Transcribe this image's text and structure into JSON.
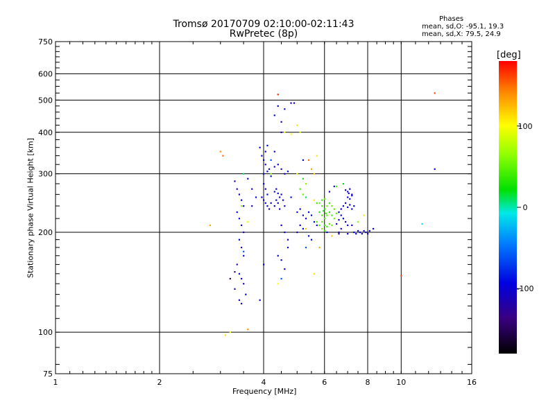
{
  "header": {
    "title": "Tromsø 20170709 02:10:00-02:11:43",
    "subtitle": "RwPretec (8p)"
  },
  "stats": {
    "heading": "Phases",
    "o_mode": "mean, sd,O: -95.1, 19.3",
    "x_mode": "mean, sd,X:  79.5, 24.9"
  },
  "colorbar": {
    "unit_label": "[deg]",
    "range": [
      -180,
      180
    ],
    "tick_values": [
      100,
      0,
      -100
    ],
    "tick_labels": [
      "100",
      "0",
      "-100"
    ]
  },
  "chart_data": {
    "type": "scatter",
    "title": "Tromsø 20170709 02:10:00-02:11:43",
    "subtitle": "RwPretec (8p)",
    "xlabel": "Frequency [MHz]",
    "ylabel": "Stationary phase Virtual Height [km]",
    "x_scale": "log",
    "y_scale": "log",
    "xlim": [
      1,
      16
    ],
    "ylim": [
      75,
      750
    ],
    "x_ticks": [
      1,
      2,
      4,
      6,
      8,
      10,
      16
    ],
    "x_tick_labels": [
      "1",
      "2",
      "4",
      "6",
      "8",
      "10",
      "16"
    ],
    "y_ticks": [
      75,
      100,
      200,
      300,
      400,
      500,
      600,
      750
    ],
    "y_tick_labels": [
      "75",
      "100",
      "200",
      "300",
      "400",
      "500",
      "600",
      "750"
    ],
    "grid": true,
    "color_scale": "phase (deg), rainbow: black (-180) to red (180)",
    "points": [
      [
        3.3,
        285,
        -110
      ],
      [
        3.35,
        270,
        -105
      ],
      [
        3.4,
        260,
        -100
      ],
      [
        3.45,
        250,
        -95
      ],
      [
        3.5,
        240,
        -100
      ],
      [
        3.35,
        230,
        -90
      ],
      [
        3.4,
        220,
        -85
      ],
      [
        3.45,
        210,
        -100
      ],
      [
        3.5,
        200,
        -110
      ],
      [
        3.4,
        190,
        -95
      ],
      [
        3.45,
        180,
        -105
      ],
      [
        3.5,
        170,
        -100
      ],
      [
        3.35,
        160,
        -120
      ],
      [
        3.4,
        150,
        -95
      ],
      [
        3.45,
        145,
        -100
      ],
      [
        3.5,
        140,
        -110
      ],
      [
        3.3,
        135,
        -125
      ],
      [
        3.55,
        130,
        -95
      ],
      [
        3.4,
        125,
        -105
      ],
      [
        3.45,
        122,
        -100
      ],
      [
        3.3,
        152,
        -140
      ],
      [
        3.2,
        145,
        -150
      ],
      [
        3.5,
        175,
        -60
      ],
      [
        3.45,
        240,
        60
      ],
      [
        3.5,
        300,
        10
      ],
      [
        3.9,
        360,
        -90
      ],
      [
        3.95,
        340,
        -100
      ],
      [
        4.0,
        330,
        -95
      ],
      [
        4.05,
        320,
        -110
      ],
      [
        4.1,
        305,
        -95
      ],
      [
        4.15,
        310,
        -100
      ],
      [
        4.2,
        295,
        -105
      ],
      [
        4.0,
        300,
        -90
      ],
      [
        4.05,
        350,
        -100
      ],
      [
        4.1,
        365,
        -95
      ],
      [
        4.0,
        280,
        -100
      ],
      [
        4.05,
        270,
        -110
      ],
      [
        4.1,
        260,
        -95
      ],
      [
        3.95,
        255,
        -100
      ],
      [
        4.0,
        250,
        -95
      ],
      [
        4.05,
        245,
        -90
      ],
      [
        4.1,
        240,
        -100
      ],
      [
        4.15,
        235,
        -110
      ],
      [
        4.2,
        245,
        -95
      ],
      [
        4.3,
        240,
        -100
      ],
      [
        4.35,
        250,
        -95
      ],
      [
        4.4,
        245,
        -100
      ],
      [
        4.45,
        255,
        -105
      ],
      [
        4.5,
        260,
        -95
      ],
      [
        4.55,
        250,
        -100
      ],
      [
        4.6,
        240,
        -110
      ],
      [
        4.3,
        265,
        -90
      ],
      [
        4.35,
        270,
        -95
      ],
      [
        4.4,
        262,
        -100
      ],
      [
        4.45,
        235,
        -105
      ],
      [
        4.3,
        315,
        -100
      ],
      [
        4.4,
        320,
        -95
      ],
      [
        4.5,
        310,
        -105
      ],
      [
        4.6,
        300,
        -100
      ],
      [
        4.7,
        305,
        -95
      ],
      [
        4.3,
        450,
        -100
      ],
      [
        4.4,
        480,
        -95
      ],
      [
        4.6,
        470,
        -100
      ],
      [
        4.8,
        490,
        -105
      ],
      [
        4.4,
        520,
        170
      ],
      [
        4.5,
        430,
        -110
      ],
      [
        4.6,
        400,
        100
      ],
      [
        4.8,
        395,
        100
      ],
      [
        5.0,
        420,
        110
      ],
      [
        5.1,
        400,
        90
      ],
      [
        4.2,
        330,
        -60
      ],
      [
        4.3,
        350,
        -100
      ],
      [
        4.5,
        210,
        -100
      ],
      [
        4.6,
        200,
        -95
      ],
      [
        4.7,
        190,
        -110
      ],
      [
        4.4,
        170,
        -100
      ],
      [
        4.5,
        165,
        -95
      ],
      [
        4.6,
        155,
        -100
      ],
      [
        4.5,
        145,
        -60
      ],
      [
        4.4,
        140,
        100
      ],
      [
        3.9,
        125,
        -100
      ],
      [
        4.0,
        160,
        -95
      ],
      [
        4.7,
        180,
        -100
      ],
      [
        3.2,
        100,
        100
      ],
      [
        3.1,
        98,
        110
      ],
      [
        5.0,
        300,
        100
      ],
      [
        5.2,
        290,
        30
      ],
      [
        5.3,
        280,
        60
      ],
      [
        5.4,
        330,
        150
      ],
      [
        5.5,
        310,
        130
      ],
      [
        5.6,
        300,
        120
      ],
      [
        5.7,
        340,
        110
      ],
      [
        5.2,
        260,
        50
      ],
      [
        5.3,
        255,
        10
      ],
      [
        5.1,
        270,
        40
      ],
      [
        5.0,
        230,
        -100
      ],
      [
        5.1,
        235,
        -95
      ],
      [
        5.2,
        225,
        -110
      ],
      [
        5.3,
        220,
        -100
      ],
      [
        5.4,
        230,
        -95
      ],
      [
        5.5,
        225,
        -100
      ],
      [
        5.6,
        215,
        -105
      ],
      [
        5.7,
        210,
        -95
      ],
      [
        5.1,
        210,
        -100
      ],
      [
        5.2,
        205,
        -95
      ],
      [
        5.0,
        200,
        -110
      ],
      [
        5.4,
        195,
        -100
      ],
      [
        5.5,
        190,
        -95
      ],
      [
        5.3,
        180,
        -60
      ],
      [
        5.6,
        150,
        110
      ],
      [
        5.7,
        245,
        40
      ],
      [
        5.8,
        245,
        50
      ],
      [
        5.9,
        240,
        45
      ],
      [
        6.0,
        235,
        35
      ],
      [
        6.1,
        240,
        55
      ],
      [
        6.2,
        245,
        40
      ],
      [
        6.3,
        240,
        50
      ],
      [
        6.4,
        235,
        45
      ],
      [
        5.8,
        230,
        30
      ],
      [
        5.9,
        225,
        40
      ],
      [
        6.0,
        220,
        50
      ],
      [
        6.1,
        225,
        45
      ],
      [
        6.2,
        230,
        35
      ],
      [
        6.3,
        225,
        40
      ],
      [
        6.4,
        220,
        55
      ],
      [
        5.7,
        215,
        40
      ],
      [
        5.8,
        210,
        45
      ],
      [
        5.9,
        215,
        50
      ],
      [
        6.0,
        210,
        35
      ],
      [
        6.1,
        208,
        40
      ],
      [
        6.2,
        212,
        45
      ],
      [
        6.3,
        210,
        50
      ],
      [
        5.9,
        205,
        55
      ],
      [
        6.0,
        202,
        40
      ],
      [
        6.1,
        200,
        -100
      ],
      [
        5.9,
        250,
        40
      ],
      [
        6.0,
        252,
        50
      ],
      [
        6.5,
        228,
        45
      ],
      [
        5.95,
        232,
        35
      ],
      [
        6.05,
        228,
        40
      ],
      [
        6.6,
        230,
        -100
      ],
      [
        6.7,
        235,
        -95
      ],
      [
        6.8,
        240,
        -110
      ],
      [
        6.9,
        245,
        -100
      ],
      [
        7.0,
        238,
        -95
      ],
      [
        7.1,
        242,
        -100
      ],
      [
        7.2,
        235,
        -105
      ],
      [
        7.3,
        240,
        -95
      ],
      [
        6.7,
        225,
        -100
      ],
      [
        6.8,
        220,
        -95
      ],
      [
        6.9,
        215,
        -110
      ],
      [
        7.0,
        210,
        -100
      ],
      [
        6.6,
        218,
        -95
      ],
      [
        6.5,
        212,
        -100
      ],
      [
        6.7,
        205,
        -105
      ],
      [
        7.0,
        265,
        -100
      ],
      [
        7.1,
        270,
        -95
      ],
      [
        7.2,
        260,
        -110
      ],
      [
        7.0,
        255,
        -100
      ],
      [
        7.2,
        258,
        -95
      ],
      [
        6.8,
        280,
        20
      ],
      [
        6.5,
        275,
        40
      ],
      [
        7.1,
        252,
        -90
      ],
      [
        6.9,
        268,
        -100
      ],
      [
        7.05,
        262,
        -95
      ],
      [
        7.3,
        200,
        -100
      ],
      [
        7.5,
        202,
        -95
      ],
      [
        7.7,
        198,
        -110
      ],
      [
        7.9,
        200,
        -100
      ],
      [
        8.1,
        202,
        -95
      ],
      [
        8.3,
        205,
        -100
      ],
      [
        7.4,
        198,
        -105
      ],
      [
        7.6,
        200,
        -95
      ],
      [
        7.8,
        202,
        -100
      ],
      [
        8.0,
        198,
        -110
      ],
      [
        7.2,
        210,
        -100
      ],
      [
        7.0,
        198,
        -95
      ],
      [
        6.6,
        200,
        -110
      ],
      [
        7.5,
        215,
        60
      ],
      [
        7.8,
        225,
        110
      ],
      [
        2.8,
        210,
        130
      ],
      [
        3.0,
        350,
        140
      ],
      [
        3.05,
        340,
        150
      ],
      [
        3.6,
        102,
        140
      ],
      [
        10.0,
        148,
        160
      ],
      [
        12.5,
        525,
        160
      ],
      [
        12.5,
        310,
        -100
      ],
      [
        11.5,
        212,
        -10
      ],
      [
        6.3,
        195,
        120
      ],
      [
        5.8,
        180,
        130
      ],
      [
        4.9,
        490,
        -110
      ],
      [
        4.5,
        400,
        -120
      ],
      [
        4.2,
        300,
        60
      ],
      [
        5.2,
        330,
        -95
      ],
      [
        4.8,
        255,
        -90
      ],
      [
        3.6,
        290,
        -100
      ],
      [
        3.7,
        270,
        -110
      ],
      [
        3.8,
        255,
        -95
      ],
      [
        3.7,
        240,
        -120
      ],
      [
        3.6,
        215,
        90
      ],
      [
        5.3,
        205,
        120
      ],
      [
        5.6,
        250,
        110
      ],
      [
        6.4,
        275,
        -100
      ],
      [
        6.2,
        265,
        -110
      ],
      [
        6.6,
        198,
        -120
      ]
    ]
  }
}
